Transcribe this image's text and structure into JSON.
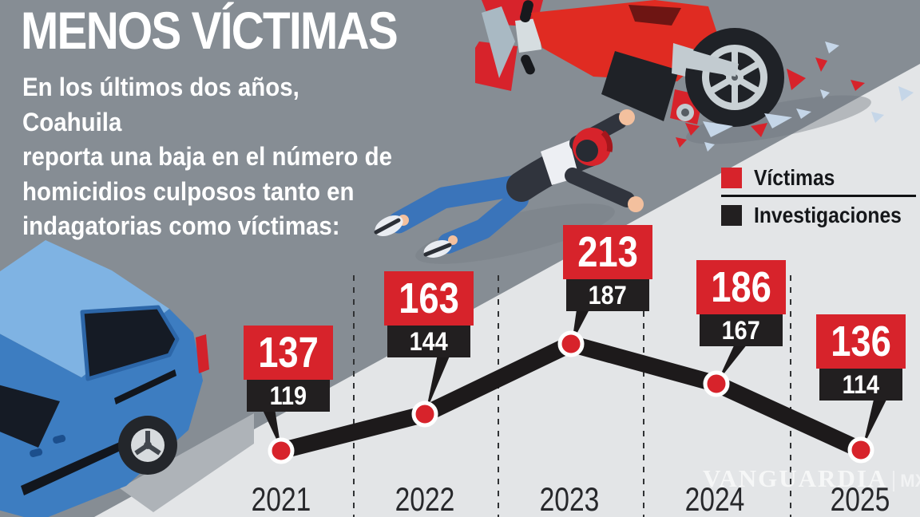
{
  "header": {
    "title": "MENOS VÍCTIMAS",
    "intro": "En los últimos dos años, Coahuila\nreporta una baja en el número de\nhomicidios culposos tanto en\nindagatorias como víctimas:"
  },
  "legend": {
    "items": [
      {
        "label": "Víctimas",
        "color": "#d7232b"
      },
      {
        "label": "Investigaciones",
        "color": "#221f20"
      }
    ]
  },
  "chart_data": {
    "type": "line",
    "title": "MENOS VÍCTIMAS",
    "categories": [
      "2021",
      "2022",
      "2023",
      "2024",
      "2025"
    ],
    "series": [
      {
        "name": "Víctimas",
        "color": "#d7232b",
        "values": [
          137,
          163,
          213,
          186,
          136
        ]
      },
      {
        "name": "Investigaciones",
        "color": "#221f20",
        "values": [
          119,
          144,
          187,
          167,
          114
        ]
      }
    ],
    "legend_position": "top-right",
    "grid": "dashed vertical separators between years",
    "marker": "red dot with white ring on thick black trend line (line follows Investigaciones)"
  },
  "watermark": {
    "brand": "VANGUARDIA",
    "suffix": "MX"
  },
  "illustrations": {
    "scene": "motorcycle crash",
    "elements": [
      "crashed red motorcycle",
      "fallen rider with red helmet",
      "blue van rear",
      "glass and debris shards"
    ]
  },
  "colors": {
    "road": "#868d94",
    "sidewalk": "#e3e5e7",
    "accent_red": "#d7232b",
    "accent_black": "#221f20",
    "text_light": "#ffffff",
    "text_dark": "#27282b"
  }
}
